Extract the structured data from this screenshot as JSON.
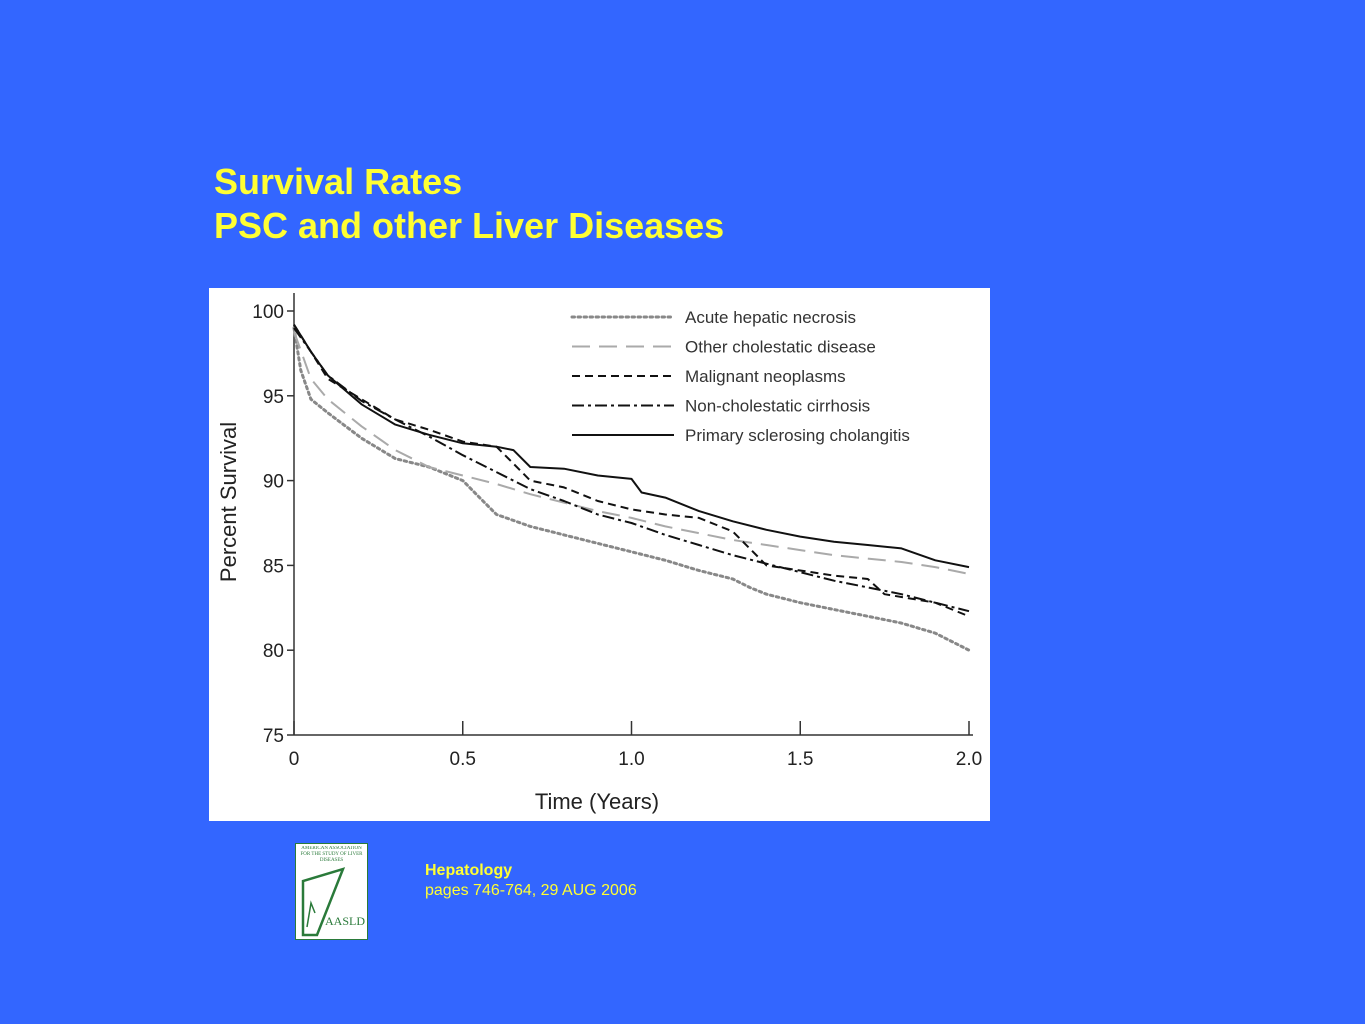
{
  "slide": {
    "title_line1": "Survival Rates",
    "title_line2": "PSC and other Liver Diseases",
    "background_color": "#3366ff",
    "title_color": "#ffff33"
  },
  "citation": {
    "journal": "Hepatology",
    "details": "pages 746-764, 29 AUG 2006"
  },
  "logo": {
    "name": "aasld-logo",
    "header_text": "AMERICAN ASSOCIATION FOR THE STUDY OF LIVER DISEASES",
    "mark_text": "AASLD",
    "color": "#2a7a3a"
  },
  "chart_data": {
    "type": "line",
    "title": "",
    "xlabel": "Time (Years)",
    "ylabel": "Percent Survival",
    "xlim": [
      0,
      2.0
    ],
    "ylim": [
      75,
      100
    ],
    "xticks": [
      0,
      0.5,
      1.0,
      1.5,
      2.0
    ],
    "xtick_labels": [
      "0",
      "0.5",
      "1.0",
      "1.5",
      "2.0"
    ],
    "yticks": [
      75,
      80,
      85,
      90,
      95,
      100
    ],
    "ytick_labels": [
      "75",
      "80",
      "85",
      "90",
      "95",
      "100"
    ],
    "grid": false,
    "legend_position": "top-right",
    "series": [
      {
        "name": "Acute hepatic necrosis",
        "style": "dotted",
        "color": "#888888",
        "x": [
          0,
          0.02,
          0.05,
          0.1,
          0.2,
          0.3,
          0.4,
          0.5,
          0.55,
          0.6,
          0.7,
          0.8,
          0.9,
          1.0,
          1.1,
          1.2,
          1.3,
          1.35,
          1.4,
          1.5,
          1.6,
          1.7,
          1.8,
          1.9,
          2.0
        ],
        "y": [
          99,
          96.5,
          94.8,
          94,
          92.5,
          91.3,
          90.8,
          90,
          89,
          88,
          87.3,
          86.8,
          86.3,
          85.8,
          85.3,
          84.7,
          84.2,
          83.7,
          83.3,
          82.8,
          82.4,
          82,
          81.6,
          81,
          80
        ]
      },
      {
        "name": "Other cholestatic disease",
        "style": "long-dash",
        "color": "#aaaaaa",
        "x": [
          0,
          0.05,
          0.1,
          0.2,
          0.3,
          0.4,
          0.5,
          0.6,
          0.7,
          0.8,
          0.9,
          1.0,
          1.1,
          1.2,
          1.3,
          1.4,
          1.5,
          1.6,
          1.7,
          1.8,
          1.9,
          2.0
        ],
        "y": [
          98.8,
          96,
          94.8,
          93.2,
          91.8,
          90.8,
          90.3,
          89.8,
          89.2,
          88.7,
          88.2,
          87.8,
          87.3,
          86.9,
          86.5,
          86.2,
          85.9,
          85.6,
          85.4,
          85.2,
          84.9,
          84.5
        ]
      },
      {
        "name": "Malignant neoplasms",
        "style": "dashed",
        "color": "#111111",
        "x": [
          0,
          0.05,
          0.1,
          0.2,
          0.3,
          0.4,
          0.5,
          0.6,
          0.65,
          0.7,
          0.8,
          0.9,
          1.0,
          1.1,
          1.2,
          1.3,
          1.35,
          1.4,
          1.5,
          1.6,
          1.7,
          1.75,
          1.9,
          2.0
        ],
        "y": [
          99.2,
          97.6,
          96,
          94.8,
          93.6,
          93,
          92.3,
          92,
          91,
          90,
          89.6,
          88.8,
          88.3,
          88,
          87.8,
          87,
          86,
          85,
          84.7,
          84.4,
          84.2,
          83.3,
          82.8,
          82
        ]
      },
      {
        "name": "Non-cholestatic cirrhosis",
        "style": "dash-dot",
        "color": "#111111",
        "x": [
          0,
          0.05,
          0.1,
          0.2,
          0.3,
          0.4,
          0.5,
          0.6,
          0.7,
          0.8,
          0.9,
          1.0,
          1.1,
          1.2,
          1.3,
          1.4,
          1.5,
          1.6,
          1.7,
          1.8,
          1.9,
          2.0
        ],
        "y": [
          99,
          97.6,
          96.2,
          94.7,
          93.6,
          92.6,
          91.5,
          90.5,
          89.5,
          88.8,
          88,
          87.5,
          86.8,
          86.2,
          85.6,
          85.1,
          84.6,
          84.1,
          83.7,
          83.3,
          82.8,
          82.3
        ]
      },
      {
        "name": "Primary sclerosing cholangitis",
        "style": "solid",
        "color": "#111111",
        "x": [
          0,
          0.05,
          0.1,
          0.2,
          0.3,
          0.4,
          0.5,
          0.6,
          0.65,
          0.7,
          0.8,
          0.9,
          1.0,
          1.03,
          1.1,
          1.2,
          1.3,
          1.4,
          1.5,
          1.6,
          1.7,
          1.8,
          1.9,
          2.0
        ],
        "y": [
          99.2,
          97.6,
          96.2,
          94.5,
          93.3,
          92.7,
          92.2,
          92,
          91.8,
          90.8,
          90.7,
          90.3,
          90.1,
          89.3,
          89,
          88.2,
          87.6,
          87.1,
          86.7,
          86.4,
          86.2,
          86,
          85.3,
          84.9
        ]
      }
    ]
  }
}
